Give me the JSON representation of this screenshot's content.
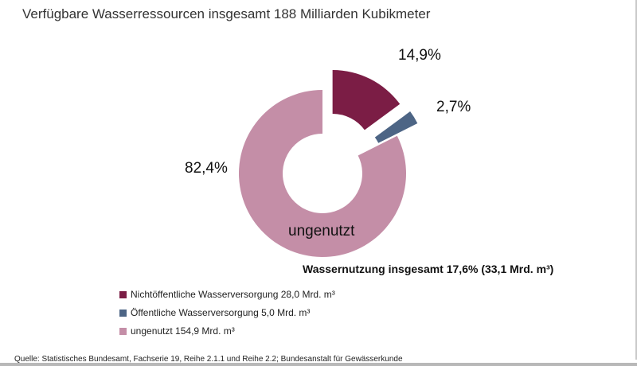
{
  "title": "Verfügbare Wasserressourcen insgesamt 188 Milliarden Kubikmeter",
  "total_note": "Wassernutzung insgesamt 17,6% (33,1 Mrd. m³)",
  "source": "Quelle: Statistisches Bundesamt, Fachserie 19, Reihe 2.1.1 und Reihe 2.2; Bundesanstalt für Gewässerkunde",
  "chart_data": {
    "type": "pie",
    "style": "donut, two slices exploded",
    "unit": "Mrd. m³",
    "title": "Verfügbare Wasserressourcen insgesamt 188 Milliarden Kubikmeter",
    "slices": [
      {
        "legend": "Nichtöffentliche Wasserversorgung 28,0 Mrd. m³",
        "value": 28.0,
        "percent_label": "14,9%",
        "color": "#7b1d45"
      },
      {
        "legend": "Öffentliche Wasserversorgung 5,0 Mrd. m³",
        "value": 5.0,
        "percent_label": "2,7%",
        "color": "#4d6585"
      },
      {
        "legend": "ungenutzt 154,9 Mrd. m³",
        "value": 154.9,
        "percent_label": "82,4%",
        "inner_label": "ungenutzt",
        "color": "#c48ea7"
      }
    ],
    "legend_position": "bottom-left"
  }
}
